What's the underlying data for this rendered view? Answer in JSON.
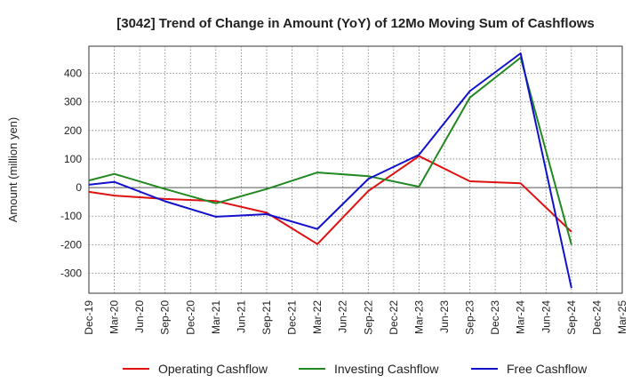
{
  "chart_data": {
    "type": "line",
    "title": "[3042]  Trend of Change in Amount (YoY) of 12Mo Moving Sum of Cashflows",
    "xlabel": "",
    "ylabel": "Amount (million yen)",
    "ylim": [
      -370,
      495
    ],
    "yticks": [
      -300,
      -200,
      -100,
      0,
      100,
      200,
      300,
      400
    ],
    "grid": true,
    "legend_position": "bottom",
    "categories": [
      "Dec-19",
      "Mar-20",
      "Jun-20",
      "Sep-20",
      "Dec-20",
      "Mar-21",
      "Jun-21",
      "Sep-21",
      "Dec-21",
      "Mar-22",
      "Jun-22",
      "Sep-22",
      "Dec-22",
      "Mar-23",
      "Jun-23",
      "Sep-23",
      "Dec-23",
      "Mar-24",
      "Jun-24",
      "Sep-24",
      "Dec-24",
      "Mar-25"
    ],
    "series": [
      {
        "name": "Operating Cashflow",
        "color": "#dd1111",
        "values": [
          -15,
          -28,
          null,
          -40,
          null,
          -47,
          null,
          -88,
          null,
          -198,
          null,
          -12,
          null,
          110,
          null,
          22,
          null,
          15,
          null,
          -155,
          null,
          null
        ]
      },
      {
        "name": "Investing Cashflow",
        "color": "#228822",
        "values": [
          25,
          48,
          null,
          -5,
          null,
          -55,
          null,
          -5,
          null,
          53,
          null,
          40,
          null,
          3,
          null,
          315,
          null,
          455,
          null,
          -200,
          null,
          null
        ]
      },
      {
        "name": "Free Cashflow",
        "color": "#1111cc",
        "values": [
          10,
          20,
          null,
          -48,
          null,
          -102,
          null,
          -93,
          null,
          -145,
          null,
          30,
          null,
          115,
          null,
          338,
          null,
          470,
          null,
          -352,
          null,
          null
        ]
      }
    ]
  }
}
